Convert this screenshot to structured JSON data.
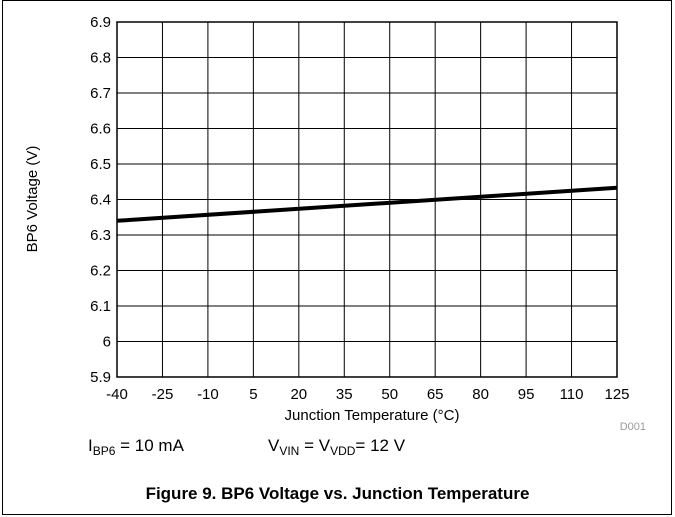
{
  "chart_data": {
    "type": "line",
    "xlabel": "Junction Temperature (°C)",
    "ylabel": "BP6 Voltage (V)",
    "x_ticks": [
      "-40",
      "-25",
      "-10",
      "5",
      "20",
      "35",
      "50",
      "65",
      "80",
      "95",
      "110",
      "125"
    ],
    "y_ticks": [
      "6.9",
      "6.8",
      "6.7",
      "6.6",
      "6.5",
      "6.4",
      "6.3",
      "6.2",
      "6.1",
      "6",
      "5.9"
    ],
    "xlim": [
      -40,
      125
    ],
    "ylim": [
      5.9,
      6.9
    ],
    "grid": true,
    "series": [
      {
        "x": [
          -40,
          125
        ],
        "y": [
          6.34,
          6.433
        ]
      }
    ],
    "line_color": "#000000",
    "watermark": "D001"
  },
  "conditions": {
    "i_main": "I",
    "i_sub": "BP6",
    "i_rest": " = 10 mA",
    "v_main": "V",
    "v_sub": "VIN",
    "v_mid": " = V",
    "v_sub2": "VDD",
    "v_rest": "= 12 V"
  },
  "caption": "Figure 9. BP6 Voltage vs. Junction Temperature"
}
